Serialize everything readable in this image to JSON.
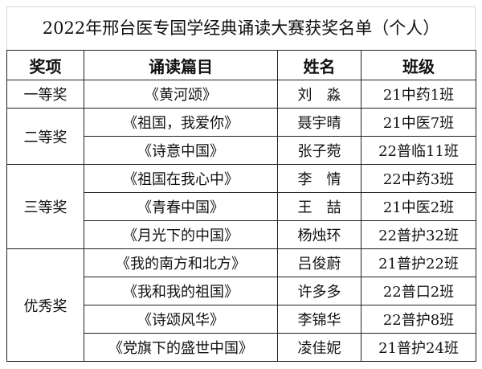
{
  "title": "2022年邢台医专国学经典诵读大赛获奖名单（个人）",
  "headers": [
    "奖项",
    "诵读篇目",
    "姓名",
    "班级"
  ],
  "groups": [
    {
      "award": "一等奖",
      "rows": [
        {
          "piece": "《黄河颂》",
          "name": "刘　淼",
          "class": "21中药1班"
        }
      ]
    },
    {
      "award": "二等奖",
      "rows": [
        {
          "piece": "《祖国，我爱你》",
          "name": "聂宇晴",
          "class": "21中医7班"
        },
        {
          "piece": "《诗意中国》",
          "name": "张子菀",
          "class": "22普临11班"
        }
      ]
    },
    {
      "award": "三等奖",
      "rows": [
        {
          "piece": "《祖国在我心中》",
          "name": "李　情",
          "class": "22中药3班"
        },
        {
          "piece": "《青春中国》",
          "name": "王　喆",
          "class": "21中医2班"
        },
        {
          "piece": "《月光下的中国》",
          "name": "杨烛环",
          "class": "22普护32班"
        }
      ]
    },
    {
      "award": "优秀奖",
      "rows": [
        {
          "piece": "《我的南方和北方》",
          "name": "吕俊蔚",
          "class": "21普护22班"
        },
        {
          "piece": "《我和我的祖国》",
          "name": "许多多",
          "class": "22普口2班"
        },
        {
          "piece": "《诗颂风华》",
          "name": "李锦华",
          "class": "22普护8班"
        },
        {
          "piece": "《党旗下的盛世中国》",
          "name": "凌佳妮",
          "class": "21普护24班"
        }
      ]
    }
  ]
}
